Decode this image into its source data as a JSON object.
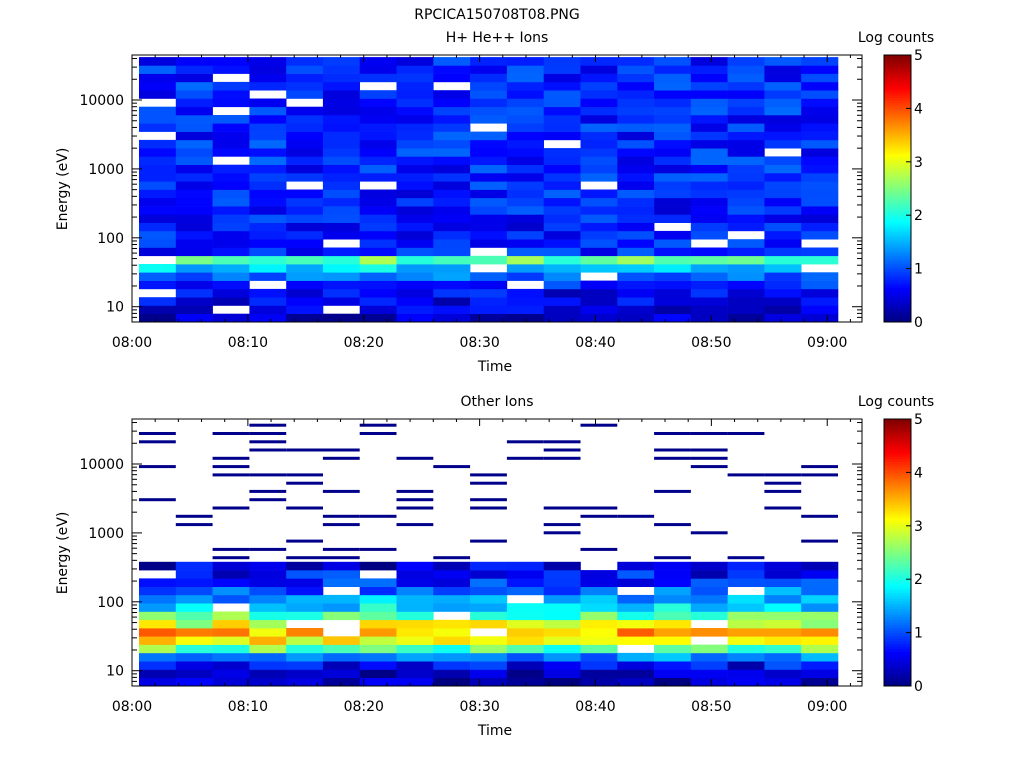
{
  "page_title": "RPCICA150708T08.PNG",
  "chart_data": [
    {
      "type": "heatmap",
      "title": "H+ He++ Ions",
      "xlabel": "Time",
      "ylabel": "Energy (eV)",
      "xlim": [
        "08:00",
        "09:03"
      ],
      "x_ticks": [
        "08:00",
        "08:10",
        "08:20",
        "08:30",
        "08:40",
        "08:50",
        "09:00"
      ],
      "yscale": "log",
      "ylim": [
        6,
        45000
      ],
      "y_ticks": [
        "10",
        "100",
        "1000",
        "10000"
      ],
      "colorbar": {
        "label": "Log counts",
        "range": [
          0,
          5
        ],
        "ticks": [
          "0",
          "1",
          "2",
          "3",
          "4",
          "5"
        ],
        "colormap": "jet"
      },
      "time_bins": 19,
      "energy_bins": 32,
      "z_profile_log_counts": [
        {
          "energy_eV": 7,
          "value": 0.4
        },
        {
          "energy_eV": 10,
          "value": 0.5
        },
        {
          "energy_eV": 16,
          "value": 0.6
        },
        {
          "energy_eV": 25,
          "value": 1.0
        },
        {
          "energy_eV": 35,
          "value": 1.6
        },
        {
          "energy_eV": 48,
          "value": 2.4
        },
        {
          "energy_eV": 60,
          "value": 0.8
        },
        {
          "energy_eV": 100,
          "value": 0.7
        },
        {
          "energy_eV": 1000,
          "value": 0.8
        },
        {
          "energy_eV": 40000,
          "value": 0.8
        }
      ]
    },
    {
      "type": "heatmap",
      "title": "Other Ions",
      "xlabel": "Time",
      "ylabel": "Energy (eV)",
      "xlim": [
        "08:00",
        "09:03"
      ],
      "x_ticks": [
        "08:00",
        "08:10",
        "08:20",
        "08:30",
        "08:40",
        "08:50",
        "09:00"
      ],
      "yscale": "log",
      "ylim": [
        6,
        45000
      ],
      "y_ticks": [
        "10",
        "100",
        "1000",
        "10000"
      ],
      "colorbar": {
        "label": "Log counts",
        "range": [
          0,
          5
        ],
        "ticks": [
          "0",
          "1",
          "2",
          "3",
          "4",
          "5"
        ],
        "colormap": "jet"
      },
      "time_bins": 19,
      "energy_bins": 32,
      "z_profile_log_counts": [
        {
          "energy_eV": 8,
          "value": 0.2
        },
        {
          "energy_eV": 12,
          "value": 0.6
        },
        {
          "energy_eV": 18,
          "value": 1.5
        },
        {
          "energy_eV": 22,
          "value": 2.6
        },
        {
          "energy_eV": 27,
          "value": 3.1
        },
        {
          "energy_eV": 34,
          "value": 3.6
        },
        {
          "energy_eV": 43,
          "value": 3.2
        },
        {
          "energy_eV": 55,
          "value": 2.6
        },
        {
          "energy_eV": 75,
          "value": 1.9
        },
        {
          "energy_eV": 110,
          "value": 1.4
        },
        {
          "energy_eV": 180,
          "value": 0.9
        },
        {
          "energy_eV": 350,
          "value": 0.4
        },
        {
          "energy_eV": 1000,
          "value": 0.1
        },
        {
          "energy_eV": 40000,
          "value": 0.1
        }
      ],
      "sparse_above_eV": 350
    }
  ]
}
